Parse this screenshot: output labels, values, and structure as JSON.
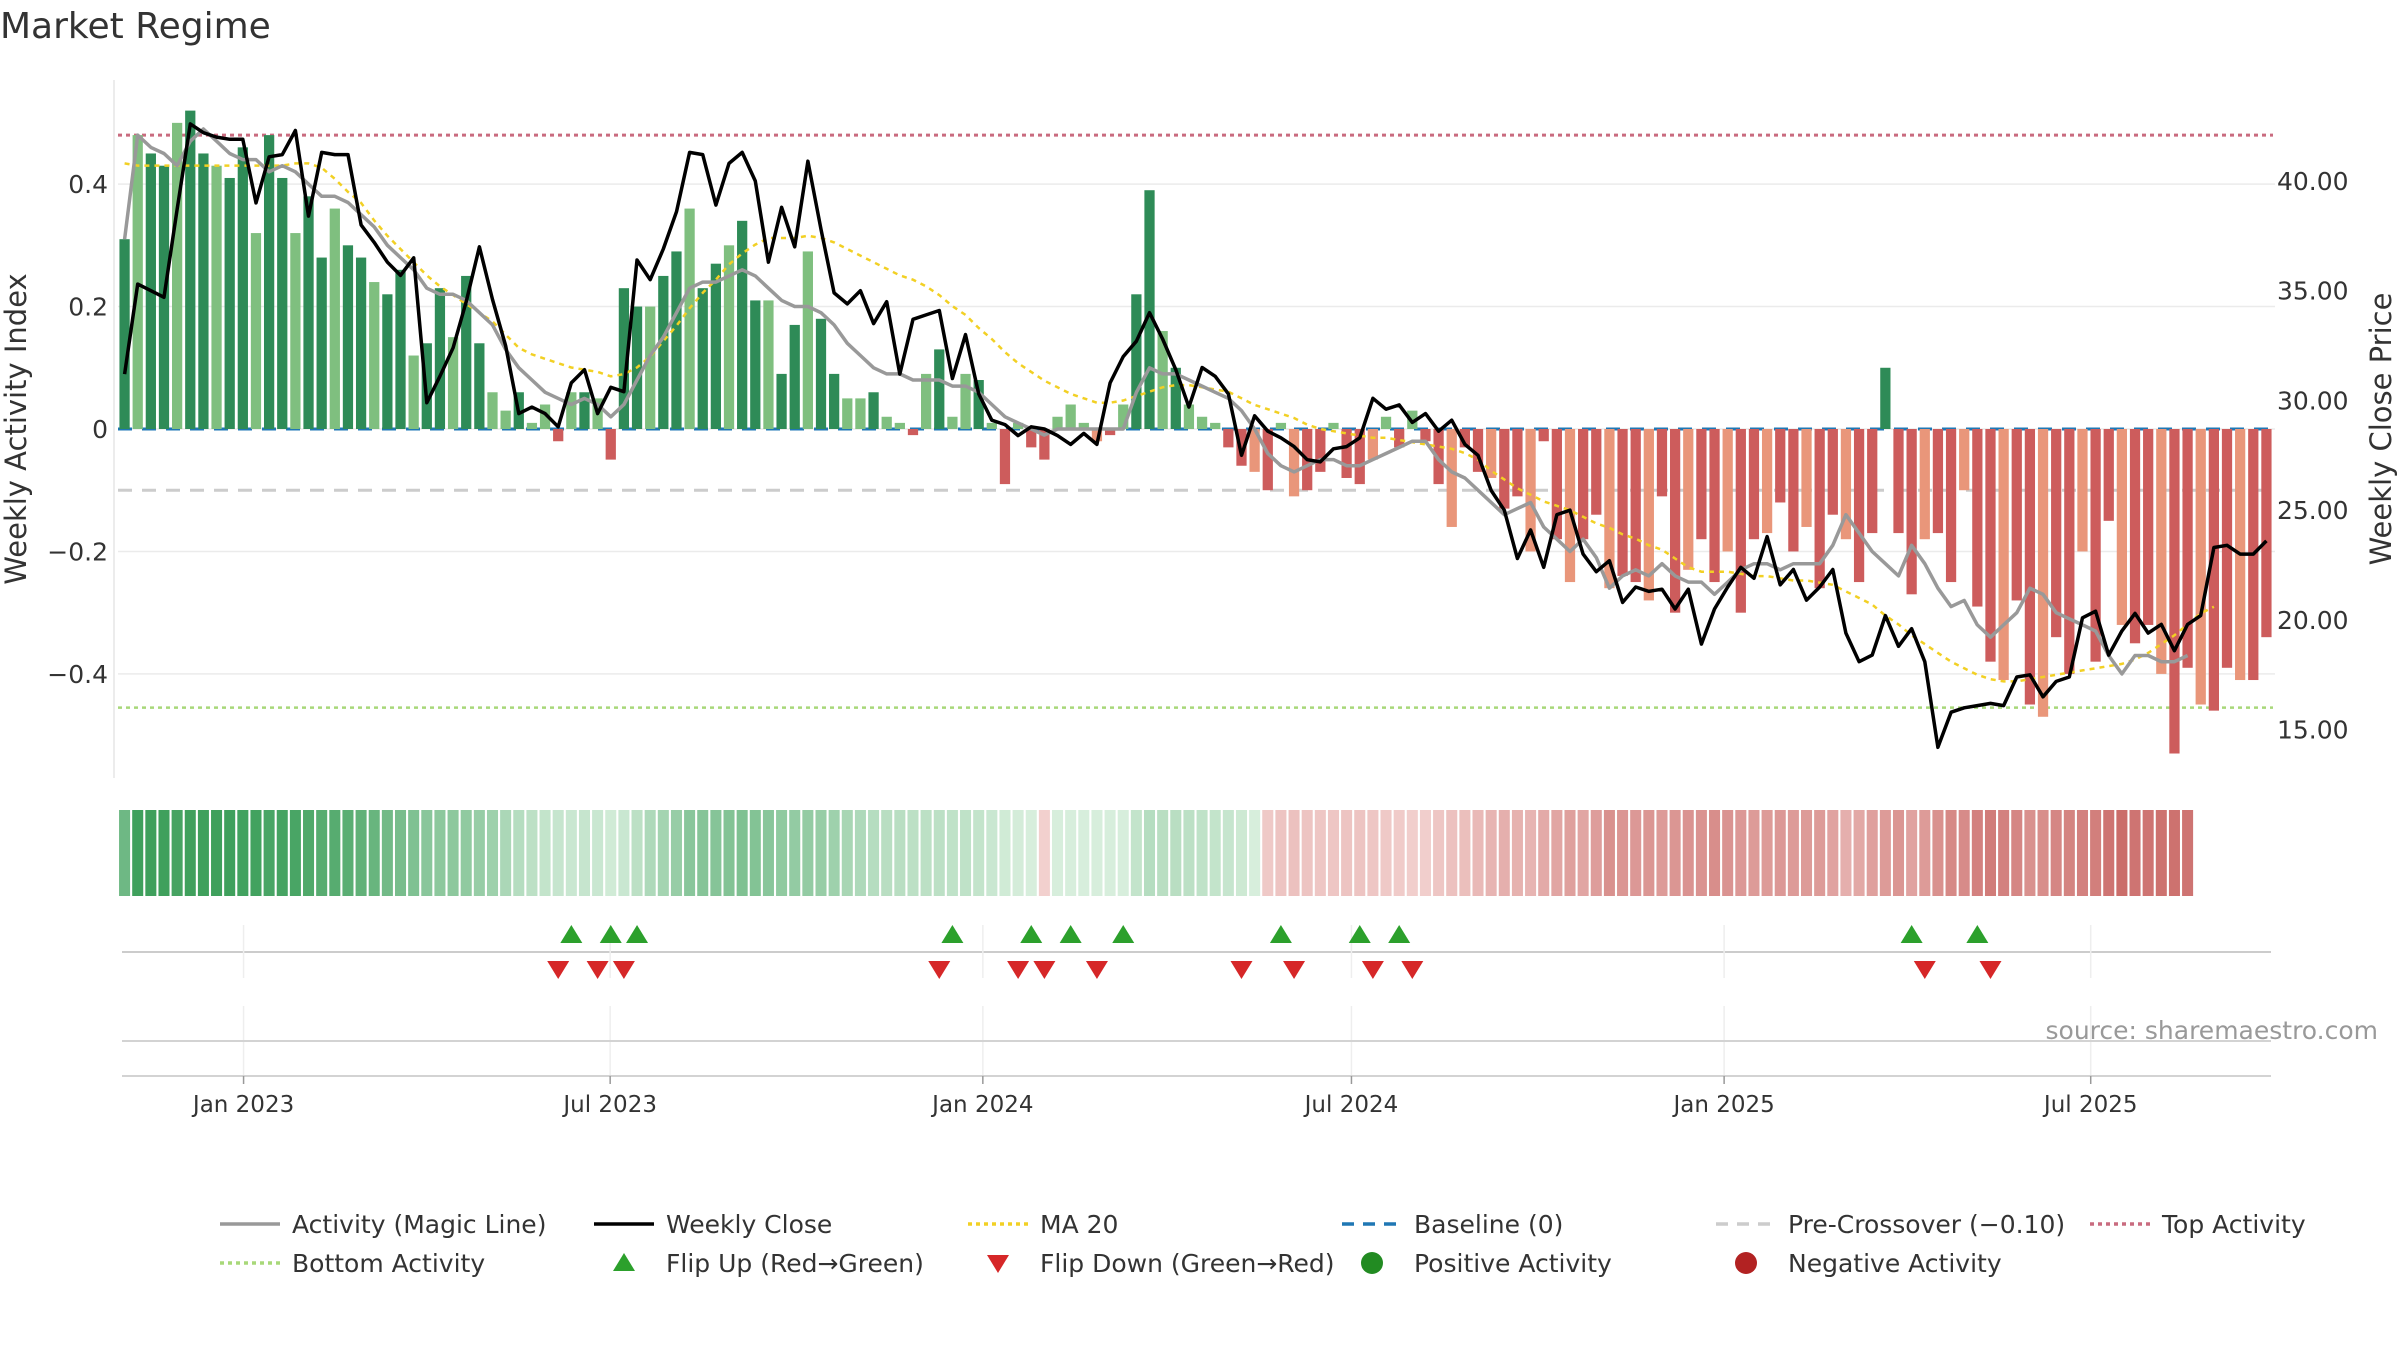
{
  "title": "Market Regime",
  "source": "source: sharemaestro.com",
  "colors": {
    "pos_strong": "#2e8b57",
    "pos_light": "#7fbf7f",
    "neg_strong": "#cd5c5c",
    "neg_light": "#e9967a",
    "close": "#000000",
    "magic": "#999999",
    "ma": "#f2d024",
    "baseline": "#1f77b4",
    "precross": "#cccccc",
    "top": "#c96b7f",
    "bottom": "#a8d879",
    "flip_up": "#2ca02c",
    "flip_down": "#d62728",
    "pos_dot": "#228b22",
    "neg_dot": "#b22222"
  },
  "chart_data": {
    "type": "bar",
    "title": "Market Regime",
    "xlabel": "",
    "x_ticks": [
      "Jan 2023",
      "Jul 2023",
      "Jan 2024",
      "Jul 2024",
      "Jan 2025",
      "Jul 2025"
    ],
    "x_range": [
      "2022-10-31",
      "2025-09-29"
    ],
    "left_axis": {
      "label": "Weekly Activity Index",
      "ylim": [
        -0.57,
        0.57
      ],
      "ticks": [
        "0.4",
        "0.2",
        "0",
        "−0.2",
        "−0.4"
      ],
      "tick_values": [
        0.4,
        0.2,
        0,
        -0.2,
        -0.4
      ]
    },
    "right_axis": {
      "label": "Weekly Close Price",
      "ylim": [
        12.8,
        44.6
      ],
      "ticks": [
        "40.00",
        "35.00",
        "30.00",
        "25.00",
        "20.00",
        "15.00"
      ],
      "tick_values": [
        40,
        35,
        30,
        25,
        20,
        15
      ]
    },
    "reference_lines": {
      "baseline": 0,
      "pre_crossover": -0.1,
      "top_activity": 0.48,
      "bottom_activity": -0.455
    },
    "activity_bars": [
      0.31,
      0.48,
      0.45,
      0.43,
      0.5,
      0.52,
      0.45,
      0.43,
      0.41,
      0.46,
      0.32,
      0.48,
      0.41,
      0.32,
      0.38,
      0.28,
      0.36,
      0.3,
      0.28,
      0.24,
      0.22,
      0.26,
      0.12,
      0.14,
      0.23,
      0.15,
      0.25,
      0.14,
      0.06,
      0.03,
      0.06,
      0.01,
      0.04,
      -0.02,
      0.06,
      0.06,
      0.05,
      -0.05,
      0.23,
      0.2,
      0.2,
      0.25,
      0.29,
      0.36,
      0.23,
      0.27,
      0.3,
      0.34,
      0.21,
      0.21,
      0.09,
      0.17,
      0.29,
      0.18,
      0.09,
      0.05,
      0.05,
      0.06,
      0.02,
      0.01,
      -0.01,
      0.09,
      0.13,
      0.02,
      0.09,
      0.08,
      0.01,
      -0.09,
      0.01,
      -0.03,
      -0.05,
      0.02,
      0.04,
      0.01,
      -0.02,
      -0.01,
      0.04,
      0.22,
      0.39,
      0.16,
      0.1,
      0.04,
      0.02,
      0.01,
      -0.03,
      -0.06,
      -0.07,
      -0.1,
      0.01,
      -0.11,
      -0.1,
      -0.07,
      0.01,
      -0.08,
      -0.09,
      -0.05,
      0.02,
      -0.03,
      0.03,
      -0.02,
      -0.09,
      -0.16,
      -0.03,
      -0.07,
      -0.08,
      -0.13,
      -0.11,
      -0.2,
      -0.02,
      -0.18,
      -0.25,
      -0.18,
      -0.14,
      -0.26,
      -0.24,
      -0.25,
      -0.28,
      -0.11,
      -0.3,
      -0.23,
      -0.18,
      -0.25,
      -0.2,
      -0.3,
      -0.18,
      -0.17,
      -0.12,
      -0.2,
      -0.16,
      -0.26,
      -0.14,
      -0.18,
      -0.25,
      -0.17,
      0.1,
      -0.17,
      -0.27,
      -0.18,
      -0.17,
      -0.25,
      -0.1,
      -0.29,
      -0.38,
      -0.41,
      -0.28,
      -0.45,
      -0.47,
      -0.34,
      -0.4,
      -0.2,
      -0.38,
      -0.15,
      -0.32,
      -0.35,
      -0.32,
      -0.4,
      -0.53,
      -0.39,
      -0.45,
      -0.46,
      -0.39,
      -0.41,
      -0.41,
      -0.34
    ],
    "magic_line": [
      0.31,
      0.48,
      0.46,
      0.45,
      0.43,
      0.47,
      0.49,
      0.47,
      0.45,
      0.44,
      0.44,
      0.42,
      0.43,
      0.42,
      0.4,
      0.38,
      0.38,
      0.37,
      0.35,
      0.33,
      0.3,
      0.28,
      0.26,
      0.23,
      0.22,
      0.22,
      0.21,
      0.19,
      0.17,
      0.13,
      0.1,
      0.08,
      0.06,
      0.05,
      0.04,
      0.05,
      0.04,
      0.02,
      0.04,
      0.08,
      0.12,
      0.15,
      0.19,
      0.23,
      0.24,
      0.24,
      0.25,
      0.26,
      0.25,
      0.23,
      0.21,
      0.2,
      0.2,
      0.19,
      0.17,
      0.14,
      0.12,
      0.1,
      0.09,
      0.09,
      0.08,
      0.08,
      0.08,
      0.07,
      0.07,
      0.06,
      0.04,
      0.02,
      0.01,
      0.0,
      -0.01,
      0.0,
      0.0,
      0.0,
      0.0,
      0.0,
      0.0,
      0.06,
      0.1,
      0.09,
      0.09,
      0.08,
      0.07,
      0.06,
      0.05,
      0.03,
      0.0,
      -0.04,
      -0.06,
      -0.07,
      -0.06,
      -0.05,
      -0.05,
      -0.06,
      -0.06,
      -0.05,
      -0.04,
      -0.03,
      -0.02,
      -0.02,
      -0.05,
      -0.07,
      -0.08,
      -0.1,
      -0.12,
      -0.14,
      -0.13,
      -0.12,
      -0.16,
      -0.18,
      -0.2,
      -0.18,
      -0.21,
      -0.26,
      -0.24,
      -0.23,
      -0.24,
      -0.22,
      -0.24,
      -0.25,
      -0.25,
      -0.27,
      -0.25,
      -0.23,
      -0.22,
      -0.22,
      -0.23,
      -0.22,
      -0.22,
      -0.22,
      -0.19,
      -0.14,
      -0.17,
      -0.2,
      -0.22,
      -0.24,
      -0.19,
      -0.22,
      -0.26,
      -0.29,
      -0.28,
      -0.32,
      -0.34,
      -0.32,
      -0.3,
      -0.26,
      -0.27,
      -0.3,
      -0.31,
      -0.32,
      -0.33,
      -0.37,
      -0.4,
      -0.37,
      -0.37,
      -0.38,
      -0.38,
      -0.37
    ],
    "weekly_close": [
      31.2,
      35.3,
      35.0,
      34.7,
      38.7,
      42.6,
      42.2,
      42.0,
      41.9,
      41.9,
      39.0,
      41.1,
      41.2,
      42.3,
      38.4,
      41.3,
      41.2,
      41.2,
      38.0,
      37.2,
      36.3,
      35.7,
      36.5,
      29.9,
      31.1,
      32.4,
      34.5,
      37.0,
      34.6,
      32.5,
      29.4,
      29.7,
      29.4,
      28.8,
      30.8,
      31.4,
      29.4,
      30.6,
      30.4,
      36.4,
      35.5,
      36.9,
      38.6,
      41.3,
      41.2,
      38.9,
      40.8,
      41.3,
      40.0,
      36.3,
      38.8,
      37.0,
      40.9,
      37.8,
      34.9,
      34.4,
      35.0,
      33.5,
      34.5,
      31.2,
      33.7,
      33.9,
      34.1,
      31.0,
      33.0,
      30.3,
      29.1,
      28.9,
      28.4,
      28.8,
      28.7,
      28.4,
      28.0,
      28.5,
      28.0,
      30.8,
      32.0,
      32.7,
      34.0,
      32.8,
      31.4,
      29.7,
      31.5,
      31.1,
      30.3,
      27.5,
      29.3,
      28.6,
      28.3,
      27.9,
      27.3,
      27.2,
      27.8,
      27.9,
      28.3,
      30.1,
      29.6,
      29.8,
      29.0,
      29.4,
      28.6,
      29.1,
      28.0,
      27.5,
      25.9,
      25.0,
      22.8,
      24.1,
      22.4,
      24.8,
      25.0,
      23.0,
      22.2,
      22.7,
      20.8,
      21.5,
      21.3,
      21.4,
      20.5,
      21.4,
      18.9,
      20.5,
      21.5,
      22.4,
      21.9,
      23.8,
      21.6,
      22.3,
      20.9,
      21.5,
      22.3,
      19.4,
      18.1,
      18.4,
      20.2,
      18.8,
      19.6,
      18.1,
      14.2,
      15.8,
      16.0,
      16.1,
      16.2,
      16.1,
      17.4,
      17.5,
      16.5,
      17.2,
      17.4,
      20.1,
      20.4,
      18.4,
      19.5,
      20.3,
      19.4,
      19.8,
      18.6,
      19.8,
      20.2,
      23.3,
      23.4,
      23.0,
      23.0,
      23.6
    ],
    "ma20": [
      40.8,
      40.7,
      40.7,
      40.7,
      40.7,
      40.7,
      40.7,
      40.7,
      40.7,
      40.7,
      40.7,
      40.7,
      40.7,
      40.8,
      40.8,
      40.6,
      40.1,
      39.5,
      39.0,
      38.2,
      37.5,
      36.9,
      36.3,
      35.7,
      35.2,
      34.8,
      34.4,
      34.0,
      33.6,
      33.0,
      32.4,
      32.1,
      31.9,
      31.7,
      31.5,
      31.4,
      31.3,
      31.1,
      31.2,
      31.5,
      32.0,
      32.7,
      33.4,
      34.2,
      34.9,
      35.5,
      36.2,
      36.7,
      37.1,
      37.4,
      37.4,
      37.4,
      37.5,
      37.4,
      37.2,
      36.9,
      36.6,
      36.3,
      36.0,
      35.7,
      35.5,
      35.2,
      34.8,
      34.3,
      33.9,
      33.3,
      32.8,
      32.2,
      31.7,
      31.3,
      30.9,
      30.6,
      30.3,
      30.1,
      29.9,
      29.9,
      30.0,
      30.2,
      30.4,
      30.6,
      30.7,
      30.7,
      30.6,
      30.5,
      30.4,
      30.1,
      29.8,
      29.6,
      29.4,
      29.2,
      28.9,
      28.7,
      28.6,
      28.5,
      28.4,
      28.3,
      28.3,
      28.2,
      28.1,
      28.0,
      27.9,
      27.8,
      27.6,
      27.3,
      26.8,
      26.4,
      26.0,
      25.7,
      25.4,
      25.2,
      25.0,
      24.7,
      24.4,
      24.2,
      23.9,
      23.7,
      23.4,
      23.2,
      22.8,
      22.4,
      22.2,
      22.2,
      22.2,
      22.1,
      22.0,
      22.0,
      21.9,
      21.8,
      21.8,
      21.7,
      21.6,
      21.3,
      21.0,
      20.7,
      20.2,
      19.8,
      19.3,
      18.9,
      18.5,
      18.1,
      17.8,
      17.5,
      17.3,
      17.2,
      17.2,
      17.3,
      17.4,
      17.5,
      17.6,
      17.7,
      17.8,
      17.9,
      18.0,
      18.2,
      18.5,
      18.9,
      19.3,
      19.8,
      20.3,
      20.6
    ],
    "flip_up_weeks": [
      34,
      37,
      39,
      63,
      69,
      72,
      76,
      88,
      94,
      97,
      136,
      141
    ],
    "flip_down_weeks": [
      33,
      36,
      38,
      62,
      68,
      70,
      74,
      85,
      89,
      95,
      98,
      137,
      142
    ]
  },
  "legend": [
    {
      "label": "Activity (Magic Line)",
      "kind": "line",
      "color": "#999999",
      "dash": ""
    },
    {
      "label": "Weekly Close",
      "kind": "line",
      "color": "#000000",
      "dash": ""
    },
    {
      "label": "MA 20",
      "kind": "line",
      "color": "#f2d024",
      "dash": "4 4"
    },
    {
      "label": "Baseline (0)",
      "kind": "line",
      "color": "#1f77b4",
      "dash": "12 9"
    },
    {
      "label": "Pre-Crossover (−0.10)",
      "kind": "line",
      "color": "#cccccc",
      "dash": "12 9"
    },
    {
      "label": "Top Activity",
      "kind": "line",
      "color": "#c96b7f",
      "dash": "4 4"
    },
    {
      "label": "Bottom Activity",
      "kind": "line",
      "color": "#a8d879",
      "dash": "4 4"
    },
    {
      "label": "Flip Up (Red→Green)",
      "kind": "triangle-up",
      "color": "#2ca02c",
      "dash": ""
    },
    {
      "label": "Flip Down (Green→Red)",
      "kind": "triangle-down",
      "color": "#d62728",
      "dash": ""
    },
    {
      "label": "Positive Activity",
      "kind": "dot",
      "color": "#228b22",
      "dash": ""
    },
    {
      "label": "Negative Activity",
      "kind": "dot",
      "color": "#b22222",
      "dash": ""
    }
  ]
}
